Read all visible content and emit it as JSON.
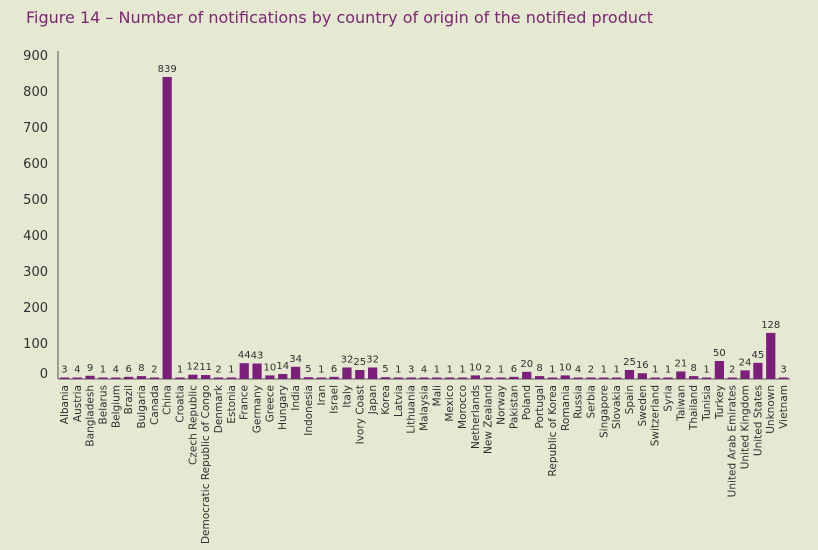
{
  "figure_title": "Figure 14 – Number of notifications by country of origin of the notified product",
  "colors": {
    "background": "#e6e9d2",
    "bar": "#7b1f7a",
    "title": "#7a2670",
    "text": "#2f2f2f"
  },
  "chart_data": {
    "type": "bar",
    "title": "Figure 14 – Number of notifications by country of origin of the notified product",
    "xlabel": "",
    "ylabel": "",
    "ylim": [
      0,
      900
    ],
    "yticks": [
      0,
      100,
      200,
      300,
      400,
      500,
      600,
      700,
      800,
      900
    ],
    "grid": false,
    "data_labels": true,
    "categories": [
      "Albania",
      "Austria",
      "Bangladesh",
      "Belarus",
      "Belgium",
      "Brazil",
      "Bulgaria",
      "Canada",
      "China",
      "Croatia",
      "Czech Republic",
      "Democratic Republic of Congo",
      "Denmark",
      "Estonia",
      "France",
      "Germany",
      "Greece",
      "Hungary",
      "India",
      "Indonesia",
      "Iran",
      "Israel",
      "Italy",
      "Ivory Coast",
      "Japan",
      "Korea",
      "Latvia",
      "Lithuania",
      "Malaysia",
      "Mali",
      "Mexico",
      "Morocco",
      "Netherlands",
      "New Zealand",
      "Norway",
      "Pakistan",
      "Poland",
      "Portugal",
      "Republic of Korea",
      "Romania",
      "Russia",
      "Serbia",
      "Singapore",
      "Slovakia",
      "Spain",
      "Sweden",
      "Switzerland",
      "Syria",
      "Taiwan",
      "Thailand",
      "Tunisia",
      "Turkey",
      "United Arab Emirates",
      "United Kingdom",
      "United States",
      "Unknown",
      "Vietnam"
    ],
    "values": [
      3,
      4,
      9,
      1,
      4,
      6,
      8,
      2,
      839,
      1,
      12,
      11,
      2,
      1,
      44,
      43,
      10,
      14,
      34,
      5,
      1,
      6,
      32,
      25,
      32,
      5,
      1,
      3,
      4,
      1,
      1,
      1,
      10,
      2,
      1,
      6,
      20,
      8,
      1,
      10,
      4,
      2,
      1,
      1,
      25,
      16,
      1,
      1,
      21,
      8,
      1,
      50,
      2,
      24,
      45,
      128,
      3
    ]
  }
}
